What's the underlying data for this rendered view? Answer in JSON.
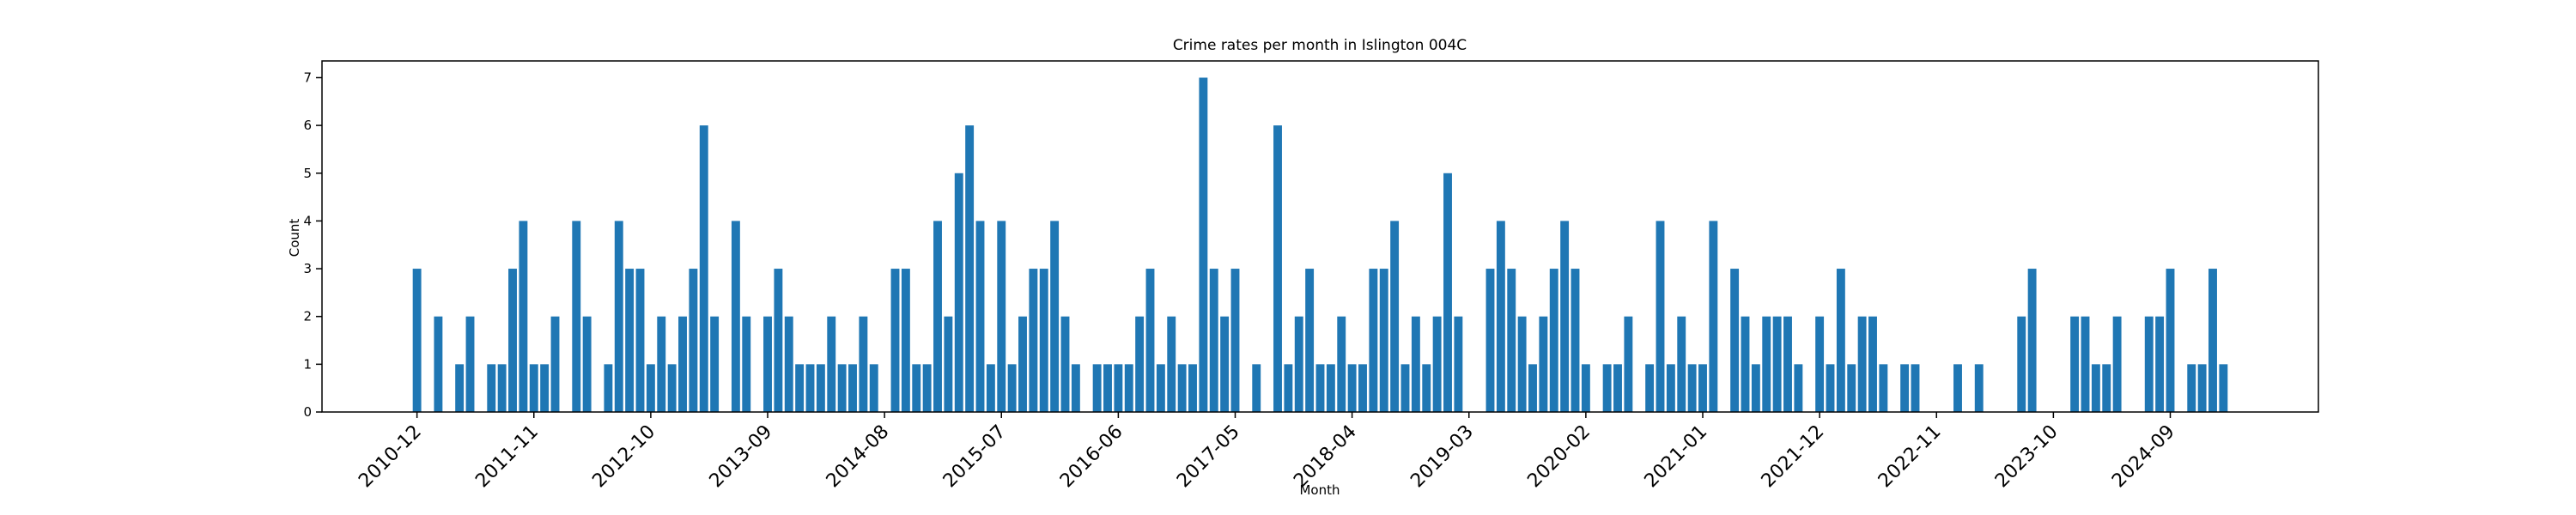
{
  "chart_data": {
    "type": "bar",
    "title": "Crime rates per month in Islington 004C",
    "x_label": "Month",
    "y_label": "Count",
    "color": "#1f77b4",
    "categories": [
      "2010-12",
      null,
      null,
      null,
      null,
      null,
      null,
      null,
      null,
      null,
      null,
      "2011-11",
      null,
      null,
      null,
      null,
      null,
      null,
      null,
      null,
      null,
      null,
      "2012-10",
      null,
      null,
      null,
      null,
      null,
      null,
      null,
      null,
      null,
      null,
      "2013-09",
      null,
      null,
      null,
      null,
      null,
      null,
      null,
      null,
      null,
      null,
      "2014-08",
      null,
      null,
      null,
      null,
      null,
      null,
      null,
      null,
      null,
      null,
      "2015-07",
      null,
      null,
      null,
      null,
      null,
      null,
      null,
      null,
      null,
      null,
      "2016-06",
      null,
      null,
      null,
      null,
      null,
      null,
      null,
      null,
      null,
      null,
      "2017-05",
      null,
      null,
      null,
      null,
      null,
      null,
      null,
      null,
      null,
      null,
      "2018-04",
      null,
      null,
      null,
      null,
      null,
      null,
      null,
      null,
      null,
      null,
      "2019-03",
      null,
      null,
      null,
      null,
      null,
      null,
      null,
      null,
      null,
      null,
      "2020-02",
      null,
      null,
      null,
      null,
      null,
      null,
      null,
      null,
      null,
      null,
      "2021-01",
      null,
      null,
      null,
      null,
      null,
      null,
      null,
      null,
      null,
      null,
      "2021-12",
      null,
      null,
      null,
      null,
      null,
      null,
      null,
      null,
      null,
      null,
      "2022-11",
      null,
      null,
      null,
      null,
      null,
      null,
      null,
      null,
      null,
      null,
      "2023-10",
      null,
      null,
      null,
      null,
      null,
      null,
      null,
      null,
      null,
      null,
      "2024-09",
      null,
      null,
      null,
      null,
      null
    ],
    "values": [
      3,
      0,
      2,
      0,
      1,
      2,
      0,
      1,
      1,
      3,
      4,
      1,
      1,
      2,
      0,
      4,
      2,
      0,
      1,
      4,
      3,
      3,
      1,
      2,
      1,
      2,
      3,
      6,
      2,
      0,
      4,
      2,
      0,
      2,
      3,
      2,
      1,
      1,
      1,
      2,
      1,
      1,
      2,
      1,
      0,
      3,
      3,
      1,
      1,
      4,
      2,
      5,
      6,
      4,
      1,
      4,
      1,
      2,
      3,
      3,
      4,
      2,
      1,
      0,
      1,
      1,
      1,
      1,
      2,
      3,
      1,
      2,
      1,
      1,
      7,
      3,
      2,
      3,
      0,
      1,
      0,
      6,
      1,
      2,
      3,
      1,
      1,
      2,
      1,
      1,
      3,
      3,
      4,
      1,
      2,
      1,
      2,
      5,
      2,
      0,
      0,
      3,
      4,
      3,
      2,
      1,
      2,
      3,
      4,
      3,
      1,
      0,
      1,
      1,
      2,
      0,
      1,
      4,
      1,
      2,
      1,
      1,
      4,
      0,
      3,
      2,
      1,
      2,
      2,
      2,
      1,
      0,
      2,
      1,
      3,
      1,
      2,
      2,
      1,
      0,
      1,
      1,
      0,
      0,
      0,
      1,
      0,
      1,
      0,
      0,
      0,
      2,
      3,
      0,
      0,
      0,
      2,
      2,
      1,
      1,
      2,
      0,
      0,
      2,
      2,
      3,
      0,
      1,
      1,
      3,
      1
    ],
    "ylim": [
      0,
      7.35
    ],
    "yticks": [
      0,
      1,
      2,
      3,
      4,
      5,
      6,
      7
    ]
  }
}
